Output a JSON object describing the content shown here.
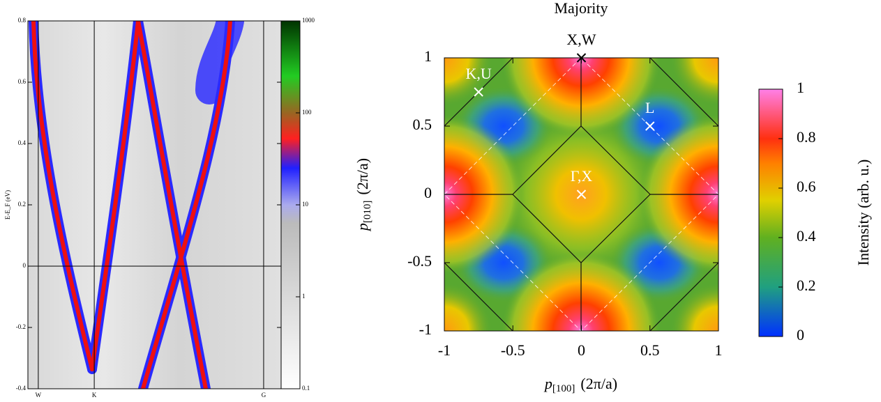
{
  "chart_data": [
    {
      "type": "band-structure",
      "ylabel": "E-E_F (eV)",
      "ylim": [
        -0.4,
        0.8
      ],
      "yticks": [
        -0.4,
        -0.2,
        0,
        0.2,
        0.4,
        0.6,
        0.8
      ],
      "categories": [
        "W",
        "K",
        "G"
      ],
      "colorbar": {
        "scale": "log",
        "lim": [
          0.1,
          1000
        ],
        "ticks": [
          0.1,
          1,
          10,
          100,
          1000
        ]
      }
    },
    {
      "type": "intensity-map",
      "title": "Majority",
      "xlabel": {
        "symbol": "p",
        "subscript": "[100]",
        "unit": "(2π/a)"
      },
      "ylabel": {
        "symbol": "p",
        "subscript": "[010]",
        "unit": "(2π/a)"
      },
      "xlim": [
        -1,
        1
      ],
      "xticks": [
        -1,
        -0.5,
        0,
        0.5,
        1
      ],
      "ylim": [
        -1,
        1
      ],
      "yticks": [
        -1,
        -0.5,
        0,
        0.5,
        1
      ],
      "colorbar": {
        "label": "Intensity (arb. u.)",
        "lim": [
          0,
          1
        ],
        "ticks": [
          0,
          0.2,
          0.4,
          0.6,
          0.8,
          1
        ]
      },
      "points": [
        {
          "label": "X,W",
          "x": 0,
          "y": 1,
          "color": "#000000"
        },
        {
          "label": "K,U",
          "x": -0.75,
          "y": 0.75,
          "color": "#ffffff"
        },
        {
          "label": "L",
          "x": 0.5,
          "y": 0.5,
          "color": "#ffffff"
        },
        {
          "label": "Γ,X",
          "x": 0,
          "y": 0,
          "color": "#ffffff"
        }
      ]
    }
  ]
}
